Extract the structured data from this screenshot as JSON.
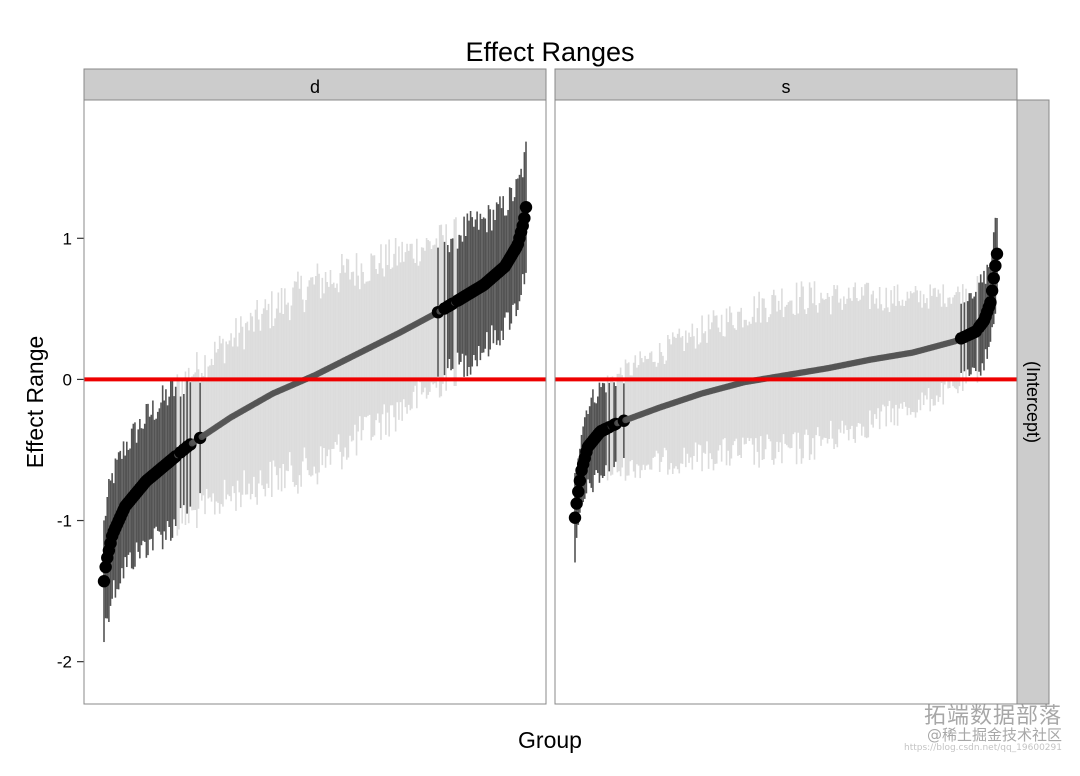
{
  "chart_data": {
    "type": "scatter",
    "title": "Effect Ranges",
    "xlabel": "Group",
    "ylabel": "Effect Range",
    "facet_columns": [
      "d",
      "s"
    ],
    "facet_row": "(Intercept)",
    "reference_line": {
      "y": 0,
      "color": "#ee0000"
    },
    "ylim": [
      -2.3,
      1.98
    ],
    "y_ticks": [
      1,
      0,
      -1,
      -2
    ],
    "y_tick_labels": [
      "1",
      "0",
      "-1",
      "-2"
    ],
    "grid": false,
    "legend": "none",
    "panels": [
      {
        "name": "d",
        "n_groups": 260,
        "estimate_quantiles": {
          "q": [
            0,
            0.005,
            0.02,
            0.05,
            0.1,
            0.2,
            0.3,
            0.4,
            0.5,
            0.6,
            0.7,
            0.8,
            0.9,
            0.95,
            0.98,
            0.995,
            1
          ],
          "value": [
            -1.43,
            -1.3,
            -1.1,
            -0.9,
            -0.72,
            -0.47,
            -0.27,
            -0.1,
            0.03,
            0.18,
            0.33,
            0.49,
            0.67,
            0.8,
            0.95,
            1.12,
            1.22
          ]
        },
        "interval_halfwidth": {
          "center": 0.65,
          "extremes": 0.4
        },
        "significant_when": "interval excludes 0"
      },
      {
        "name": "s",
        "n_groups": 260,
        "estimate_quantiles": {
          "q": [
            0,
            0.005,
            0.015,
            0.03,
            0.06,
            0.1,
            0.2,
            0.3,
            0.4,
            0.5,
            0.6,
            0.7,
            0.8,
            0.9,
            0.95,
            0.97,
            0.985,
            0.995,
            1
          ],
          "value": [
            -0.98,
            -0.85,
            -0.65,
            -0.48,
            -0.37,
            -0.31,
            -0.2,
            -0.1,
            -0.02,
            0.03,
            0.08,
            0.14,
            0.19,
            0.27,
            0.34,
            0.42,
            0.55,
            0.78,
            0.89
          ]
        },
        "interval_halfwidth": {
          "center": 0.55,
          "extremes": 0.28
        },
        "significant_when": "interval excludes 0"
      }
    ]
  },
  "colors": {
    "reference_line": "#ee0000",
    "point": "#000000",
    "strip_fill": "#cccccc",
    "panel_border": "#888888"
  },
  "watermark": {
    "main": "拓端数据部落",
    "sub": "@稀土掘金技术社区",
    "url": "https://blog.csdn.net/qq_19600291"
  }
}
